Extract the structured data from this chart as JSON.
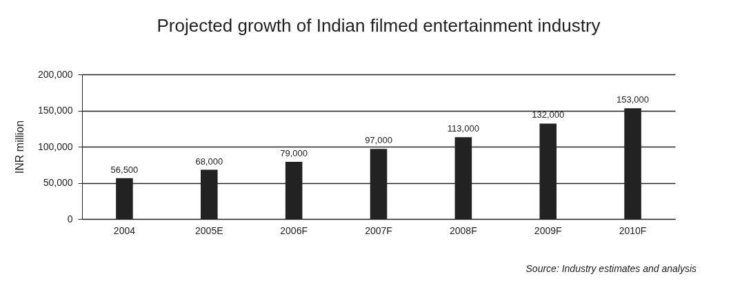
{
  "chart_data": {
    "type": "bar",
    "title": "Projected growth of Indian filmed entertainment industry",
    "ylabel": "INR million",
    "categories": [
      "2004",
      "2005E",
      "2006F",
      "2007F",
      "2008F",
      "2009F",
      "2010F"
    ],
    "values": [
      56500,
      68000,
      79000,
      97000,
      113000,
      132000,
      153000
    ],
    "value_labels": [
      "56,500",
      "68,000",
      "79,000",
      "97,000",
      "113,000",
      "132,000",
      "153,000"
    ],
    "color": "#222222",
    "ylim": [
      0,
      200000
    ],
    "yticks": [
      0,
      {
        "value": 50000,
        "label": "50,000"
      },
      {
        "value": 100000,
        "label": "100,000"
      },
      {
        "value": 150000,
        "label": "150,000"
      },
      {
        "value": 200000,
        "label": "200,000"
      }
    ],
    "grid": "y",
    "annotations": [
      "Source: Industry estimates and analysis"
    ]
  }
}
